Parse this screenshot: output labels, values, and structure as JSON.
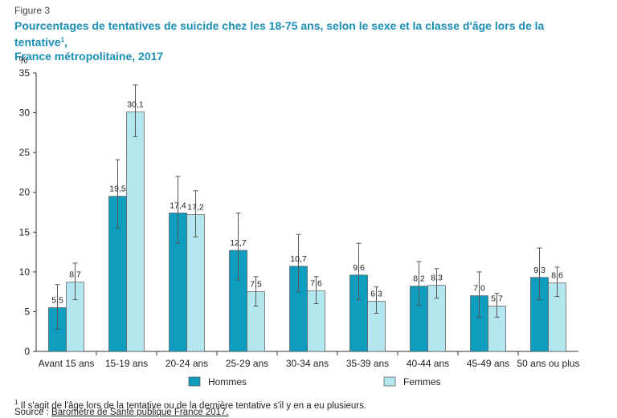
{
  "figure_label": "Figure 3",
  "title_line1": "Pourcentages de tentatives de suicide chez les 18-75 ans, selon le sexe et la classe d'âge lors de la tentative",
  "title_sup": "1",
  "title_line2": "France métropolitaine, 2017",
  "footnote_mark": "1",
  "footnote_text": "Il s'agit de l'âge lors de la tentative ou de la dernière tentative s'il y en a eu plusieurs.",
  "source_prefix": "Source : ",
  "source_name": "Baromètre de Santé publique France 2017.",
  "colors": {
    "hommes": "#0e9dbf",
    "femmes": "#b4e6f0",
    "title": "#1a8fb7"
  },
  "chart_data": {
    "type": "bar",
    "ylabel": "%",
    "ylim": [
      0,
      35
    ],
    "yticks": [
      0,
      5,
      10,
      15,
      20,
      25,
      30,
      35
    ],
    "grid": false,
    "legend_position": "bottom-center",
    "categories": [
      "Avant 15 ans",
      "15-19 ans",
      "20-24 ans",
      "25-29 ans",
      "30-34 ans",
      "35-39 ans",
      "40-44 ans",
      "45-49 ans",
      "50 ans ou plus"
    ],
    "series": [
      {
        "name": "Hommes",
        "values": [
          5.5,
          19.5,
          17.4,
          12.7,
          10.7,
          9.6,
          8.2,
          7.0,
          9.3
        ],
        "labels": [
          "5,5",
          "19,5",
          "17,4",
          "12,7",
          "10,7",
          "9,6",
          "8,2",
          "7,0",
          "9,3"
        ],
        "ci_low": [
          2.8,
          15.5,
          13.6,
          9.0,
          7.5,
          6.5,
          5.8,
          4.3,
          6.5
        ],
        "ci_high": [
          8.4,
          24.1,
          22.0,
          17.4,
          14.7,
          13.6,
          11.3,
          10.0,
          13.0
        ]
      },
      {
        "name": "Femmes",
        "values": [
          8.7,
          30.1,
          17.2,
          7.5,
          7.6,
          6.3,
          8.3,
          5.7,
          8.6
        ],
        "labels": [
          "8,7",
          "30,1",
          "17,2",
          "7,5",
          "7,6",
          "6,3",
          "8,3",
          "5,7",
          "8,6"
        ],
        "ci_low": [
          6.5,
          27.0,
          14.4,
          5.7,
          6.0,
          4.8,
          6.7,
          4.3,
          6.9
        ],
        "ci_high": [
          11.1,
          33.5,
          20.2,
          9.4,
          9.4,
          8.1,
          10.4,
          7.3,
          10.6
        ]
      }
    ]
  }
}
